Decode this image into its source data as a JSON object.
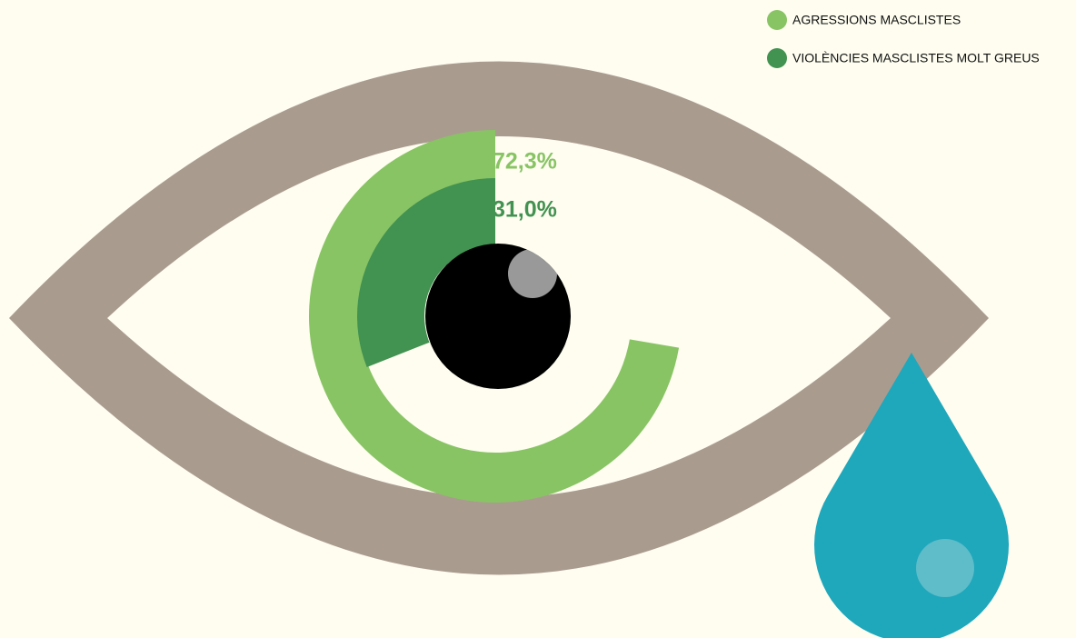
{
  "chart_data": {
    "type": "radial-bar",
    "ylim": [
      0,
      100
    ],
    "legend": "top-right",
    "series": [
      {
        "name": "AGRESSIONS MASCLISTES",
        "color": "#88c464",
        "values": [
          72.3
        ],
        "value_labels": [
          "72,3%"
        ]
      },
      {
        "name": "VIOLÈNCIES MASCLISTES MOLT GREUS",
        "color": "#429251",
        "values": [
          31.0
        ],
        "value_labels": [
          "31,0%"
        ]
      }
    ]
  }
}
